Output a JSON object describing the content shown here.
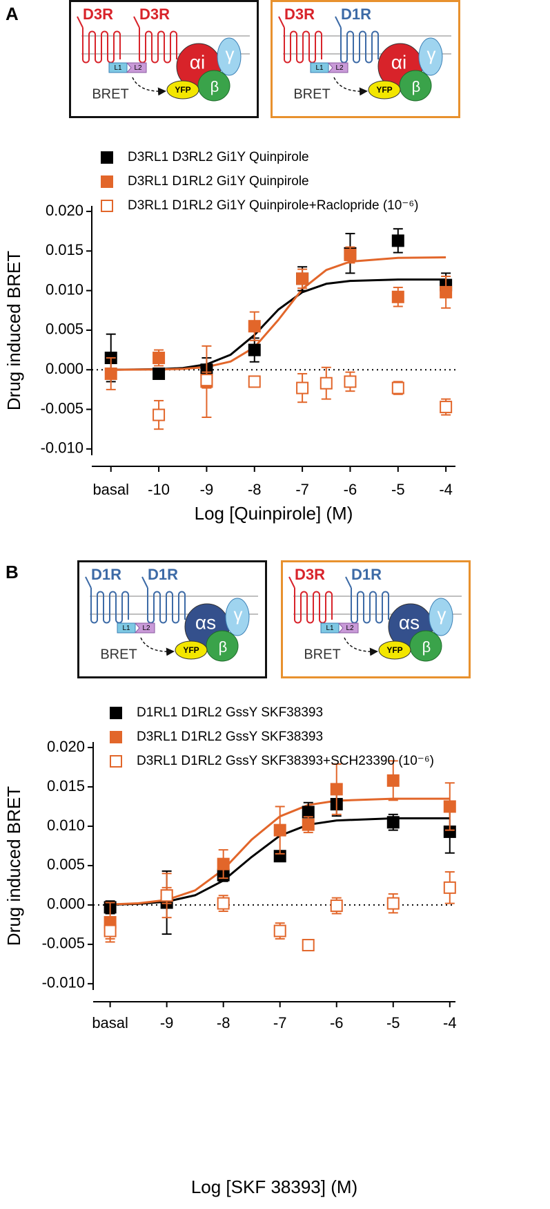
{
  "panels": [
    {
      "label": "A",
      "diagrams": [
        {
          "border": "#111111",
          "receptors": [
            {
              "name": "D3R",
              "color": "#d8232a"
            },
            {
              "name": "D3R",
              "color": "#d8232a"
            }
          ],
          "linkers": [
            "L1",
            "L2"
          ],
          "alpha": "αi",
          "alpha_color": "#d8232a",
          "beta": "β",
          "gamma": "γ",
          "acceptor": "YFP",
          "signal": "BRET"
        },
        {
          "border": "#e8912e",
          "receptors": [
            {
              "name": "D3R",
              "color": "#d8232a"
            },
            {
              "name": "D1R",
              "color": "#3c6aa6"
            }
          ],
          "linkers": [
            "L1",
            "L2"
          ],
          "alpha": "αi",
          "alpha_color": "#d8232a",
          "beta": "β",
          "gamma": "γ",
          "acceptor": "YFP",
          "signal": "BRET"
        }
      ]
    },
    {
      "label": "B",
      "diagrams": [
        {
          "border": "#111111",
          "receptors": [
            {
              "name": "D1R",
              "color": "#3c6aa6"
            },
            {
              "name": "D1R",
              "color": "#3c6aa6"
            }
          ],
          "linkers": [
            "L1",
            "L2"
          ],
          "alpha": "αs",
          "alpha_color": "#34508c",
          "beta": "β",
          "gamma": "γ",
          "acceptor": "YFP",
          "signal": "BRET"
        },
        {
          "border": "#e8912e",
          "receptors": [
            {
              "name": "D3R",
              "color": "#d8232a"
            },
            {
              "name": "D1R",
              "color": "#3c6aa6"
            }
          ],
          "linkers": [
            "L1",
            "L2"
          ],
          "alpha": "αs",
          "alpha_color": "#34508c",
          "beta": "β",
          "gamma": "γ",
          "acceptor": "YFP",
          "signal": "BRET"
        }
      ]
    }
  ],
  "chart_data": [
    {
      "type": "scatter",
      "x_label": "Log [Quinpirole] (M)",
      "y_label": "Drug induced BRET",
      "xlim": [
        -11.4,
        -3.8
      ],
      "ylim": [
        -0.0108,
        0.0207
      ],
      "zero_line": true,
      "xticks": [
        {
          "value": -11,
          "label": "basal"
        },
        -10,
        -9,
        -8,
        -7,
        -6,
        -5,
        -4
      ],
      "yticks": [
        {
          "value": -0.01,
          "label": "-0.010"
        },
        {
          "value": -0.005,
          "label": "-0.005"
        },
        {
          "value": 0,
          "label": "0.000"
        },
        {
          "value": 0.005,
          "label": "0.005"
        },
        {
          "value": 0.01,
          "label": "0.010"
        },
        {
          "value": 0.015,
          "label": "0.015"
        },
        {
          "value": 0.02,
          "label": "0.020"
        }
      ],
      "series": [
        {
          "name": "D3RL1 D3RL2 Gi1Y Quinpirole",
          "color": "#000000",
          "marker": "filled",
          "x": [
            -11,
            -10,
            -9,
            -8,
            -7,
            -6,
            -5,
            -4
          ],
          "values": [
            0.0015,
            -0.0005,
            0,
            0.0025,
            0.0115,
            0.0147,
            0.0163,
            0.0107
          ],
          "errors": [
            0.003,
            0.0005,
            0.0015,
            0.0015,
            0.0015,
            0.0025,
            0.0015,
            0.0015
          ],
          "fit": {
            "x": [
              -11,
              -10,
              -9.5,
              -9,
              -8.5,
              -8,
              -7.5,
              -7,
              -6.5,
              -6,
              -5,
              -4
            ],
            "values": [
              0,
              7e-05,
              0.00022,
              0.00068,
              0.0019,
              0.0044,
              0.0076,
              0.0098,
              0.01086,
              0.01122,
              0.0114,
              0.0114
            ]
          }
        },
        {
          "name": "D3RL1 D1RL2 Gi1Y Quinpirole",
          "color": "#e2662a",
          "marker": "filled",
          "x": [
            -11,
            -10,
            -9,
            -8,
            -7,
            -6,
            -5,
            -4
          ],
          "values": [
            -0.0005,
            0.0015,
            -0.0015,
            0.0055,
            0.0115,
            0.0145,
            0.0092,
            0.0098
          ],
          "errors": [
            0.002,
            0.001,
            0.0045,
            0.0018,
            0.0012,
            0.001,
            0.0012,
            0.002
          ],
          "fit": {
            "x": [
              -11,
              -10,
              -9.5,
              -9,
              -8.5,
              -8,
              -7.5,
              -7,
              -6.5,
              -6,
              -5,
              -4
            ],
            "values": [
              0,
              4e-05,
              0.00011,
              0.00035,
              0.00104,
              0.00285,
              0.0063,
              0.0102,
              0.0126,
              0.01366,
              0.01414,
              0.0142
            ]
          }
        },
        {
          "name": "D3RL1 D1RL2 Gi1Y Quinpirole+Raclopride (10⁻⁶)",
          "color": "#e2662a",
          "marker": "open",
          "x": [
            -10,
            -9,
            -8,
            -7,
            -6.5,
            -6,
            -5,
            -4
          ],
          "values": [
            -0.0057,
            -0.0013,
            -0.0015,
            -0.0023,
            -0.0017,
            -0.0015,
            -0.0023,
            -0.0047
          ],
          "errors": [
            0.0018,
            0.001,
            0.0003,
            0.0018,
            0.002,
            0.0012,
            0.0008,
            0.001
          ]
        }
      ]
    },
    {
      "type": "scatter",
      "x_label": "Log [SKF 38393] (M)",
      "y_label": "Drug induced BRET",
      "xlim": [
        -10.3,
        -3.9
      ],
      "ylim": [
        -0.0108,
        0.0207
      ],
      "zero_line": true,
      "xticks": [
        {
          "value": -10,
          "label": "basal"
        },
        -9,
        -8,
        -7,
        -6,
        -5,
        -4
      ],
      "yticks": [
        {
          "value": -0.01,
          "label": "-0.010"
        },
        {
          "value": -0.005,
          "label": "-0.005"
        },
        {
          "value": 0,
          "label": "0.000"
        },
        {
          "value": 0.005,
          "label": "0.005"
        },
        {
          "value": 0.01,
          "label": "0.010"
        },
        {
          "value": 0.015,
          "label": "0.015"
        },
        {
          "value": 0.02,
          "label": "0.020"
        }
      ],
      "series": [
        {
          "name": "D1RL1 D1RL2 GssY SKF38393",
          "color": "#000000",
          "marker": "filled",
          "x": [
            -10,
            -9,
            -8,
            -7,
            -6.5,
            -6,
            -5,
            -4
          ],
          "values": [
            -0.0003,
            0.0003,
            0.0038,
            0.0062,
            0.0118,
            0.0128,
            0.0105,
            0.0093
          ],
          "errors": [
            0.0008,
            0.004,
            0.0008,
            0.0005,
            0.0012,
            0.0015,
            0.001,
            0.0027
          ],
          "fit": {
            "x": [
              -10,
              -9.5,
              -9,
              -8.5,
              -8,
              -7.5,
              -7,
              -6.5,
              -6,
              -5,
              -4
            ],
            "values": [
              4e-05,
              0.00014,
              0.00042,
              0.00123,
              0.0031,
              0.0061,
              0.0088,
              0.0102,
              0.01073,
              0.011,
              0.011
            ]
          }
        },
        {
          "name": "D3RL1 D1RL2 GssY SKF38393",
          "color": "#e2662a",
          "marker": "filled",
          "x": [
            -10,
            -9,
            -8,
            -7,
            -6.5,
            -6,
            -5,
            -4
          ],
          "values": [
            -0.0022,
            0.0012,
            0.0052,
            0.0095,
            0.0102,
            0.0147,
            0.0158,
            0.0125
          ],
          "errors": [
            0.0025,
            0.0028,
            0.0018,
            0.003,
            0.001,
            0.0032,
            0.0025,
            0.003
          ],
          "fit": {
            "x": [
              -10,
              -9.5,
              -9,
              -8.5,
              -8,
              -7.5,
              -7,
              -6.5,
              -6,
              -5,
              -4
            ],
            "values": [
              7e-05,
              0.00021,
              0.00064,
              0.00185,
              0.0045,
              0.0083,
              0.01125,
              0.0127,
              0.01324,
              0.0135,
              0.0135
            ]
          }
        },
        {
          "name": "D3RL1 D1RL2 GssY SKF38393+SCH23390 (10⁻⁶)",
          "color": "#e2662a",
          "marker": "open",
          "x": [
            -10,
            -9,
            -8,
            -7,
            -6.5,
            -6,
            -5,
            -4
          ],
          "values": [
            -0.0033,
            0.0012,
            0.0002,
            -0.0033,
            -0.0051,
            -0.0001,
            0.0002,
            0.0022
          ],
          "errors": [
            0.001,
            0.001,
            0.001,
            0.001,
            0,
            0.001,
            0.0012,
            0.002
          ]
        }
      ]
    }
  ]
}
